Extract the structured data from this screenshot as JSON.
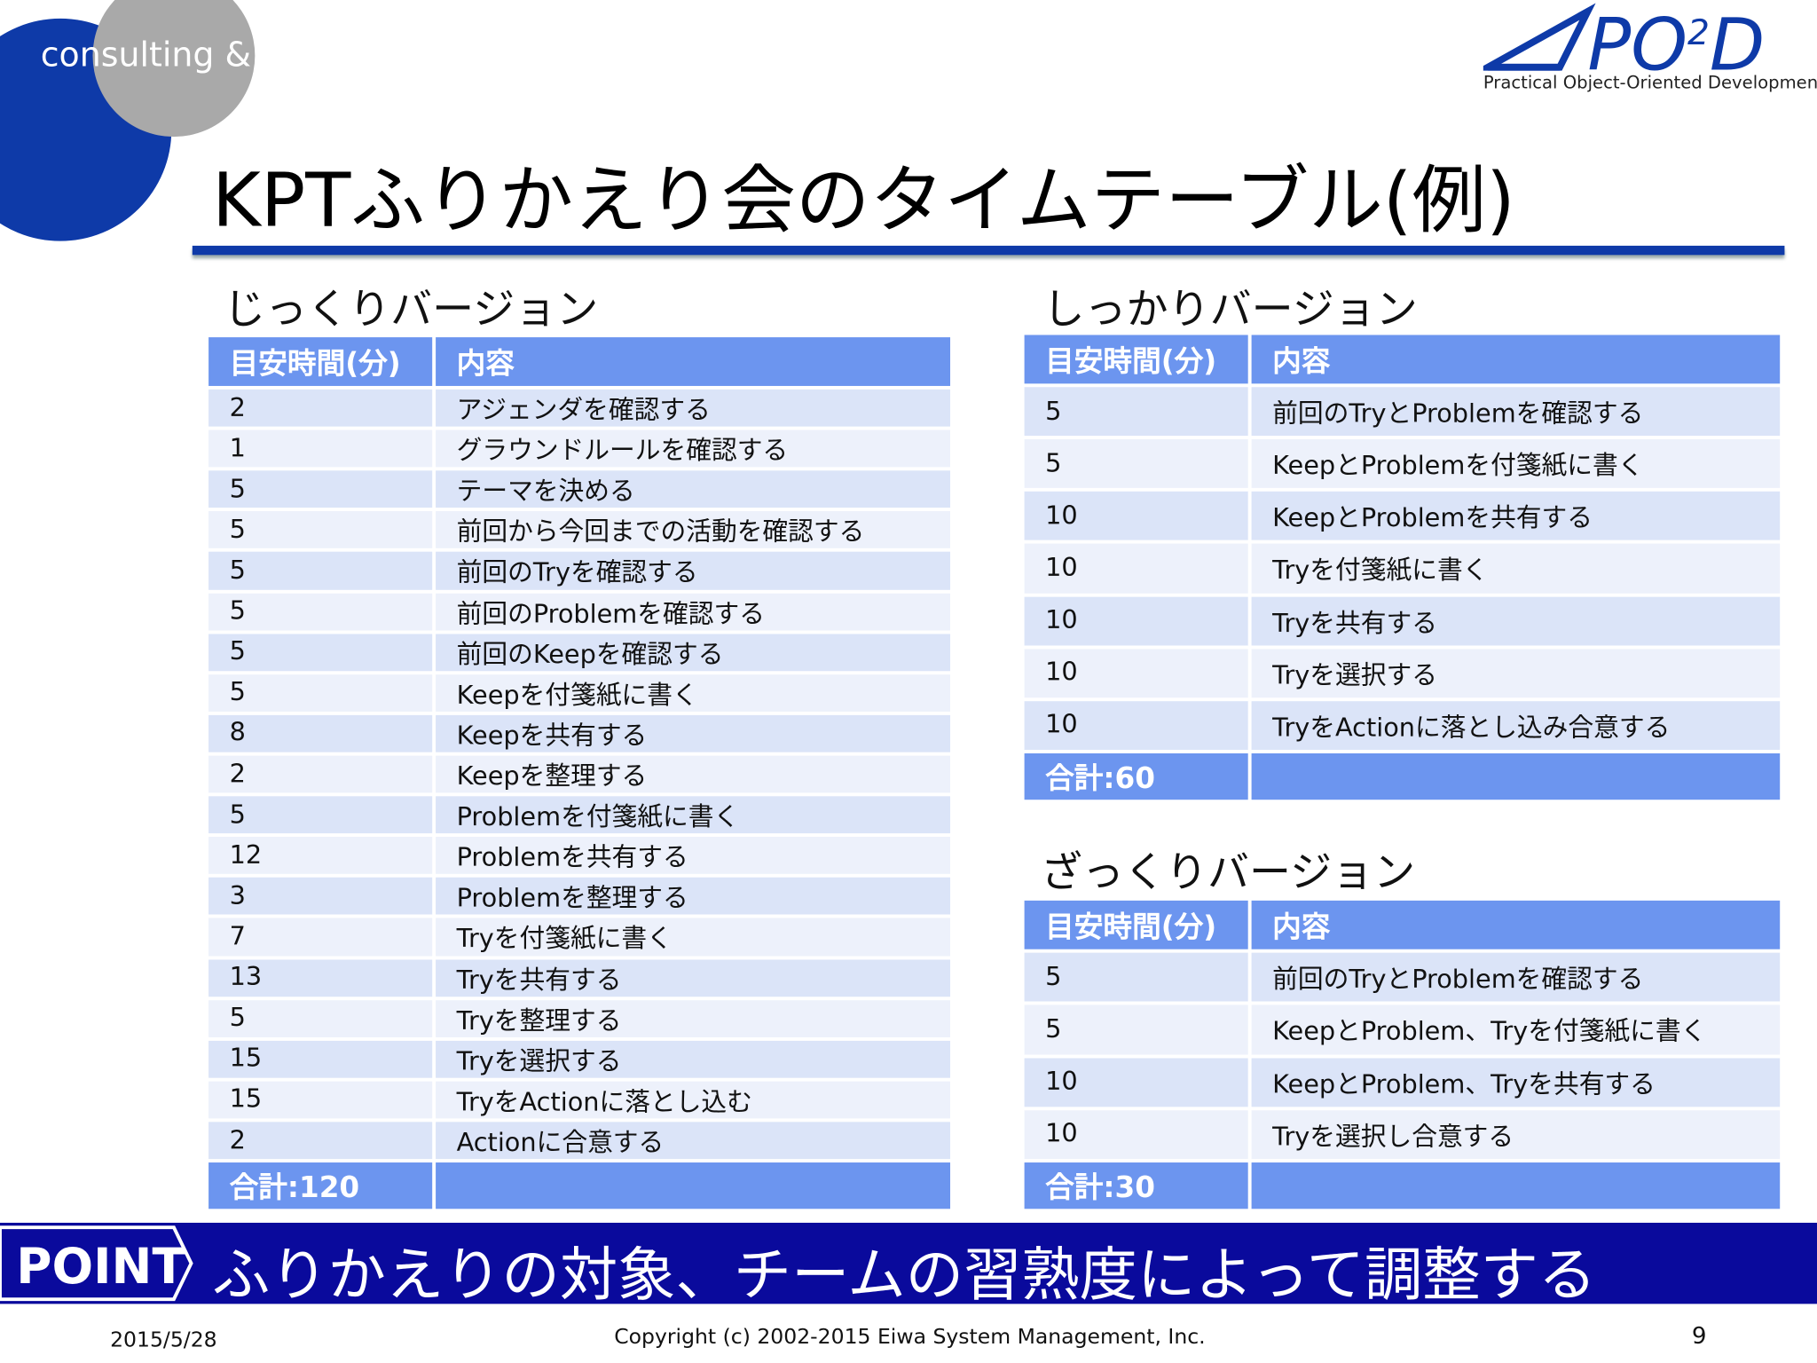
{
  "header": {
    "brand_left": "consulting & education",
    "logo_main": "PO",
    "logo_sup": "2",
    "logo_end": "D",
    "logo_tagline": "Practical Object-Oriented Development",
    "title": "KPTふりかえり会のタイムテーブル(例)"
  },
  "tables": [
    {
      "title": "じっくりバージョン",
      "header": [
        "目安時間(分)",
        "内容"
      ],
      "rows": [
        [
          2,
          "アジェンダを確認する"
        ],
        [
          1,
          "グラウンドルールを確認する"
        ],
        [
          5,
          "テーマを決める"
        ],
        [
          5,
          "前回から今回までの活動を確認する"
        ],
        [
          5,
          "前回のTryを確認する"
        ],
        [
          5,
          "前回のProblemを確認する"
        ],
        [
          5,
          "前回のKeepを確認する"
        ],
        [
          5,
          "Keepを付箋紙に書く"
        ],
        [
          8,
          "Keepを共有する"
        ],
        [
          2,
          "Keepを整理する"
        ],
        [
          5,
          "Problemを付箋紙に書く"
        ],
        [
          12,
          "Problemを共有する"
        ],
        [
          3,
          "Problemを整理する"
        ],
        [
          7,
          "Tryを付箋紙に書く"
        ],
        [
          13,
          "Tryを共有する"
        ],
        [
          5,
          "Tryを整理する"
        ],
        [
          15,
          "Tryを選択する"
        ],
        [
          15,
          "TryをActionに落とし込む"
        ],
        [
          2,
          "Actionに合意する"
        ]
      ],
      "total": "合計:120"
    },
    {
      "title": "しっかりバージョン",
      "header": [
        "目安時間(分)",
        "内容"
      ],
      "rows": [
        [
          5,
          "前回のTryとProblemを確認する"
        ],
        [
          5,
          "KeepとProblemを付箋紙に書く"
        ],
        [
          10,
          "KeepとProblemを共有する"
        ],
        [
          10,
          "Tryを付箋紙に書く"
        ],
        [
          10,
          "Tryを共有する"
        ],
        [
          10,
          "Tryを選択する"
        ],
        [
          10,
          "TryをActionに落とし込み合意する"
        ]
      ],
      "total": "合計:60"
    },
    {
      "title": "ざっくりバージョン",
      "header": [
        "目安時間(分)",
        "内容"
      ],
      "rows": [
        [
          5,
          "前回のTryとProblemを確認する"
        ],
        [
          5,
          "KeepとProblem、Tryを付箋紙に書く"
        ],
        [
          10,
          "KeepとProblem、Tryを共有する"
        ],
        [
          10,
          "Tryを選択し合意する"
        ]
      ],
      "total": "合計:30"
    }
  ],
  "point": {
    "label": "POINT",
    "text": "ふりかえりの対象、チームの習熟度によって調整する"
  },
  "footer": {
    "date": "2015/5/28",
    "copyright": "Copyright (c) 2002-2015 Eiwa System Management, Inc.",
    "page": "9"
  }
}
